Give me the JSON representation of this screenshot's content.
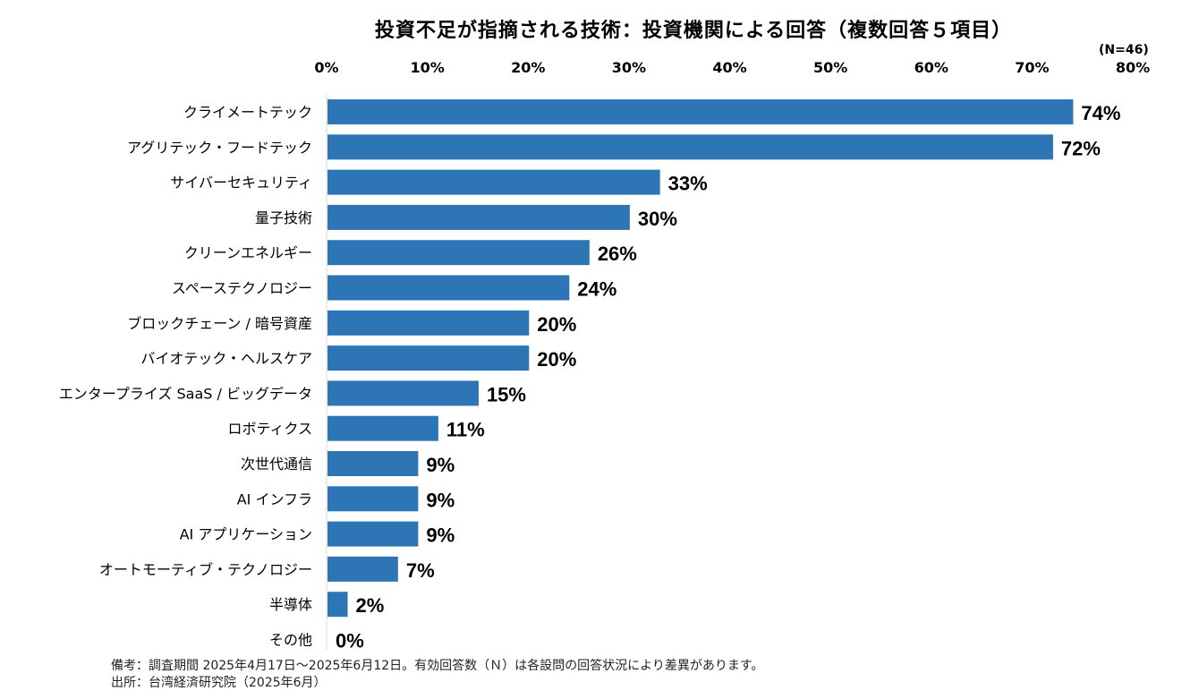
{
  "chart_data": {
    "type": "bar",
    "orientation": "horizontal",
    "title": "投資不足が指摘される技術：投資機関による回答（複数回答５項目）",
    "sample_label": "(N=46)",
    "xlim": [
      0,
      80
    ],
    "x_ticks": [
      "0%",
      "10%",
      "20%",
      "30%",
      "40%",
      "50%",
      "60%",
      "70%",
      "80%"
    ],
    "x_tick_values": [
      0,
      10,
      20,
      30,
      40,
      50,
      60,
      70,
      80
    ],
    "axis_position": "top",
    "grid": false,
    "bar_color": "#2e75b6",
    "categories": [
      "クライメートテック",
      "アグリテック・フードテック",
      "サイバーセキュリティ",
      "量子技術",
      "クリーンエネルギー",
      "スペーステクノロジー",
      "ブロックチェーン / 暗号資産",
      "バイオテック・ヘルスケア",
      "エンタープライズ SaaS / ビッグデータ",
      "ロボティクス",
      "次世代通信",
      "AI インフラ",
      "AI アプリケーション",
      "オートモーティブ・テクノロジー",
      "半導体",
      "その他"
    ],
    "values": [
      74,
      72,
      33,
      30,
      26,
      24,
      20,
      20,
      15,
      11,
      9,
      9,
      9,
      7,
      2,
      0
    ],
    "data_labels": [
      "74%",
      "72%",
      "33%",
      "30%",
      "26%",
      "24%",
      "20%",
      "20%",
      "15%",
      "11%",
      "9%",
      "9%",
      "9%",
      "7%",
      "2%",
      "0%"
    ]
  },
  "notes": {
    "remark": "備考：調査期間 2025年4月17日～2025年6月12日。有効回答数（Ｎ）は各設問の回答状況により差異があります。",
    "source": "出所：台湾経済研究院（2025年6月）"
  }
}
